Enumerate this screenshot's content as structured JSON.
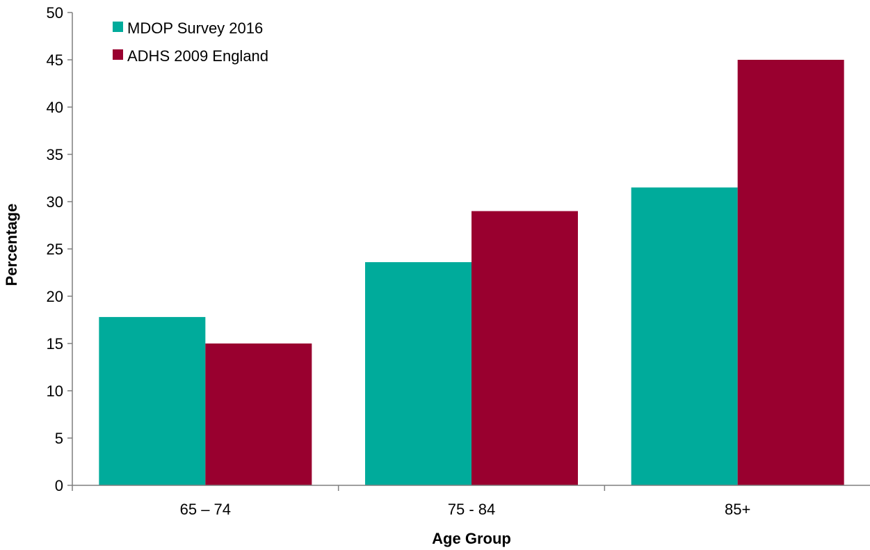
{
  "chart_data": {
    "type": "bar",
    "title": "",
    "xlabel": "Age Group",
    "ylabel": "Percentage",
    "categories": [
      "65 – 74",
      "75 - 84",
      "85+"
    ],
    "series": [
      {
        "name": "MDOP Survey 2016",
        "color": "#00ab9b",
        "values": [
          17.8,
          23.6,
          31.5
        ]
      },
      {
        "name": "ADHS 2009 England",
        "color": "#99002f",
        "values": [
          15.0,
          29.0,
          45.0
        ]
      }
    ],
    "ylim": [
      0,
      50
    ],
    "yticks": [
      0,
      5,
      10,
      15,
      20,
      25,
      30,
      35,
      40,
      45,
      50
    ],
    "grid": false,
    "legend_position": "top-left"
  }
}
